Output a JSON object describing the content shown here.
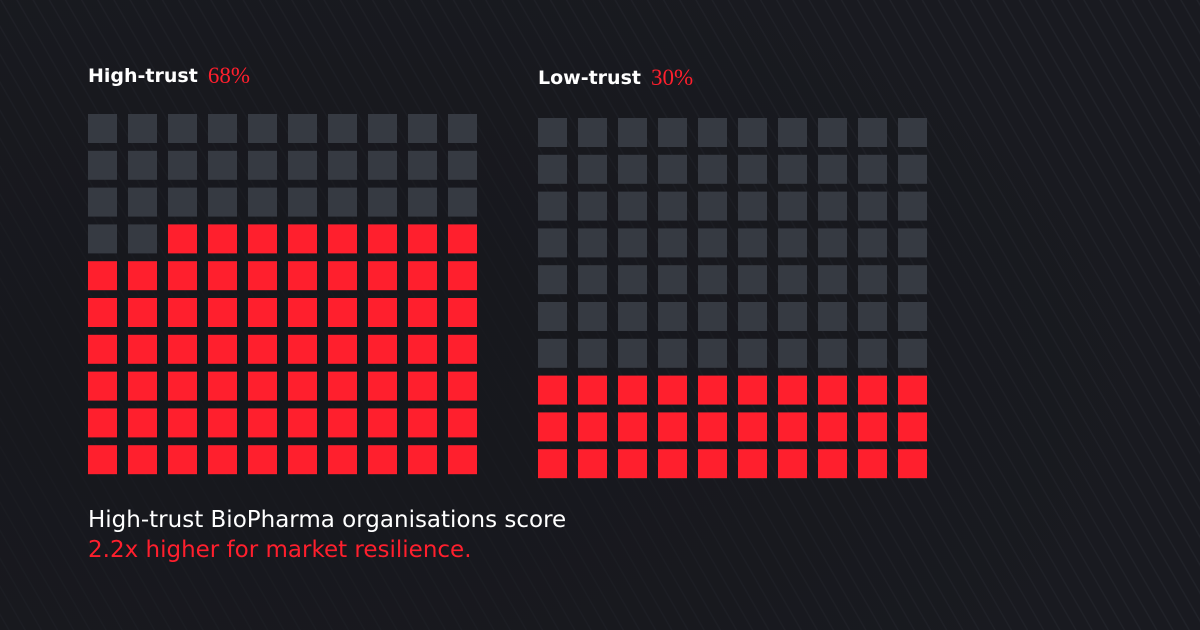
{
  "chart_data": [
    {
      "type": "waffle",
      "title": "High-trust",
      "values": [
        68
      ],
      "value_labels": [
        "68%"
      ],
      "color": "#ff1f2d",
      "empty_color": "#363a42"
    },
    {
      "type": "waffle",
      "title": "Low-trust",
      "values": [
        30
      ],
      "value_labels": [
        "30%"
      ],
      "color": "#ff1f2d",
      "empty_color": "#363a42"
    }
  ],
  "caption": [
    "High-trust BioPharma organisations score",
    "2.2x higher for market resilience."
  ]
}
